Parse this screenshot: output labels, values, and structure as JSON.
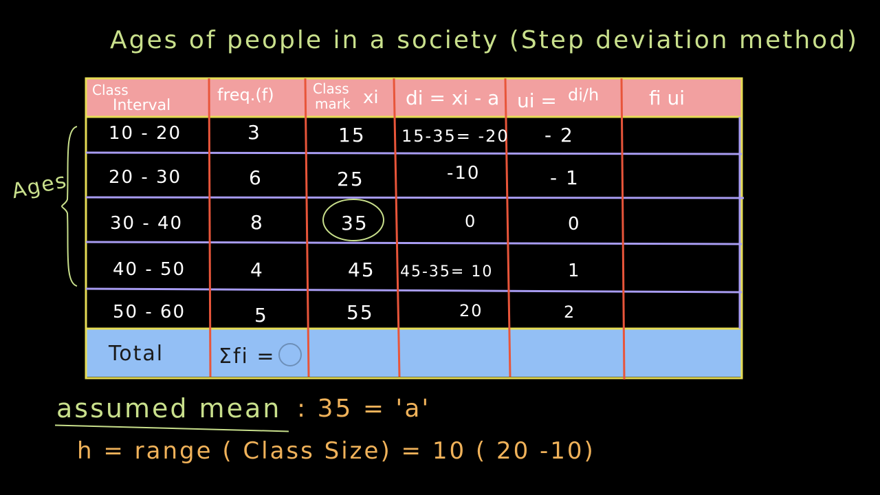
{
  "title": "Ages of people in a society  (Step deviation method)",
  "table": {
    "headers": [
      {
        "line1": "Class",
        "line2": "Interval"
      },
      {
        "line1": "freq.(f)",
        "line2": ""
      },
      {
        "line1": "Class",
        "line2": "mark",
        "extra": "xi"
      },
      {
        "line1": "di = xi - a",
        "line2": ""
      },
      {
        "line1": "ui =",
        "line2": "",
        "extra": "di/h"
      },
      {
        "line1": "fi ui",
        "line2": ""
      }
    ],
    "rows": [
      {
        "interval": "10 - 20",
        "freq": "3",
        "mark": "15",
        "di": "15-35= -20",
        "ui": "- 2",
        "fiui": ""
      },
      {
        "interval": "20 - 30",
        "freq": "6",
        "mark": "25",
        "di": "-10",
        "ui": "- 1",
        "fiui": ""
      },
      {
        "interval": "30 - 40",
        "freq": "8",
        "mark": "35",
        "di": "0",
        "ui": "0",
        "fiui": ""
      },
      {
        "interval": "40 - 50",
        "freq": "4",
        "mark": "45",
        "di": "45-35= 10",
        "ui": "1",
        "fiui": ""
      },
      {
        "interval": "50 - 60",
        "freq": "5",
        "mark": "55",
        "di": "20",
        "ui": "2",
        "fiui": ""
      }
    ],
    "total": {
      "label": "Total",
      "sum_f": "Σfi ="
    }
  },
  "side_label": "Ages",
  "assumed_mean": {
    "label": "assumed mean",
    "value": ": 35 = 'a'"
  },
  "h_line": "h =  range ( Class Size) = 10 ( 20 -10)",
  "colors": {
    "header_bg": "#f2a0a0",
    "total_bg": "#93bff5",
    "border_yellow": "#e6dc55",
    "vertical_lines": "#e8553a",
    "row_lines": "#a89cf2",
    "green_text": "#c9e08c",
    "orange_text": "#f0b25a"
  }
}
